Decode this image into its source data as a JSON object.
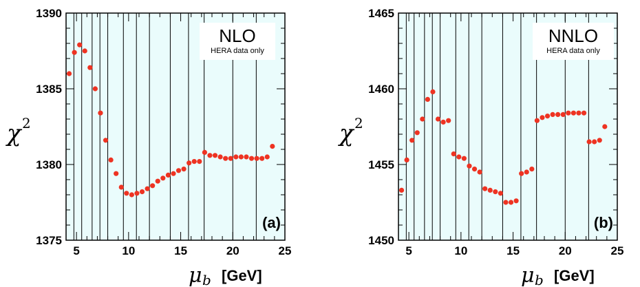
{
  "chart_data": [
    {
      "type": "scatter",
      "panel_label": "(a)",
      "box_title": "NLO",
      "box_subtitle": "HERA data only",
      "ylabel": "χ",
      "ylabel_sup": "2",
      "xlabel_symbol": "μ",
      "xlabel_sub": "b",
      "xlabel_unit": "[GeV]",
      "xlim": [
        4,
        25
      ],
      "ylim": [
        1375,
        1390
      ],
      "xticks": [
        5,
        10,
        15,
        20,
        25
      ],
      "yticks": [
        1375,
        1380,
        1385,
        1390
      ],
      "vlines": [
        4.75,
        5.5,
        6.5,
        7.25,
        8.0,
        9.5,
        10.75,
        12.0,
        14.0,
        15.75,
        17.25,
        20.0,
        22.25
      ],
      "x": [
        4.3,
        4.8,
        5.3,
        5.8,
        6.3,
        6.8,
        7.3,
        7.8,
        8.3,
        8.8,
        9.3,
        9.8,
        10.3,
        10.8,
        11.3,
        11.8,
        12.3,
        12.8,
        13.3,
        13.8,
        14.3,
        14.8,
        15.3,
        15.8,
        16.3,
        16.8,
        17.3,
        17.8,
        18.3,
        18.8,
        19.3,
        19.8,
        20.3,
        20.8,
        21.3,
        21.8,
        22.3,
        22.8,
        23.3,
        23.8
      ],
      "y": [
        1386.0,
        1387.4,
        1387.9,
        1387.5,
        1386.4,
        1385.0,
        1383.4,
        1381.6,
        1380.3,
        1379.4,
        1378.5,
        1378.1,
        1378.0,
        1378.1,
        1378.2,
        1378.4,
        1378.6,
        1378.9,
        1379.1,
        1379.3,
        1379.4,
        1379.6,
        1379.7,
        1380.1,
        1380.2,
        1380.2,
        1380.8,
        1380.6,
        1380.6,
        1380.5,
        1380.4,
        1380.4,
        1380.5,
        1380.5,
        1380.5,
        1380.4,
        1380.4,
        1380.4,
        1380.5,
        1381.2
      ],
      "point_color": "#ee3322",
      "background_color": "#eafcfc"
    },
    {
      "type": "scatter",
      "panel_label": "(b)",
      "box_title": "NNLO",
      "box_subtitle": "HERA data only",
      "ylabel": "χ",
      "ylabel_sup": "2",
      "xlabel_symbol": "μ",
      "xlabel_sub": "b",
      "xlabel_unit": "[GeV]",
      "xlim": [
        4,
        25
      ],
      "ylim": [
        1450,
        1465
      ],
      "xticks": [
        5,
        10,
        15,
        20,
        25
      ],
      "yticks": [
        1450,
        1455,
        1460,
        1465
      ],
      "vlines": [
        4.75,
        5.5,
        6.5,
        7.25,
        8.0,
        9.5,
        10.75,
        12.0,
        14.0,
        15.75,
        17.25,
        20.0,
        22.25
      ],
      "x": [
        4.3,
        4.8,
        5.3,
        5.8,
        6.3,
        6.8,
        7.3,
        7.8,
        8.3,
        8.8,
        9.3,
        9.8,
        10.3,
        10.8,
        11.3,
        11.8,
        12.3,
        12.8,
        13.3,
        13.8,
        14.3,
        14.8,
        15.3,
        15.8,
        16.3,
        16.8,
        17.3,
        17.8,
        18.3,
        18.8,
        19.3,
        19.8,
        20.3,
        20.8,
        21.3,
        21.8,
        22.3,
        22.8,
        23.3,
        23.8
      ],
      "y": [
        1453.3,
        1455.3,
        1456.6,
        1457.1,
        1458.0,
        1459.3,
        1459.8,
        1458.0,
        1457.8,
        1457.9,
        1455.7,
        1455.5,
        1455.4,
        1454.9,
        1454.7,
        1454.5,
        1453.4,
        1453.3,
        1453.2,
        1453.1,
        1452.5,
        1452.5,
        1452.6,
        1454.4,
        1454.5,
        1454.7,
        1457.9,
        1458.1,
        1458.2,
        1458.3,
        1458.3,
        1458.3,
        1458.4,
        1458.4,
        1458.4,
        1458.4,
        1456.5,
        1456.5,
        1456.6,
        1457.5
      ],
      "point_color": "#ee3322",
      "background_color": "#eafcfc"
    }
  ]
}
